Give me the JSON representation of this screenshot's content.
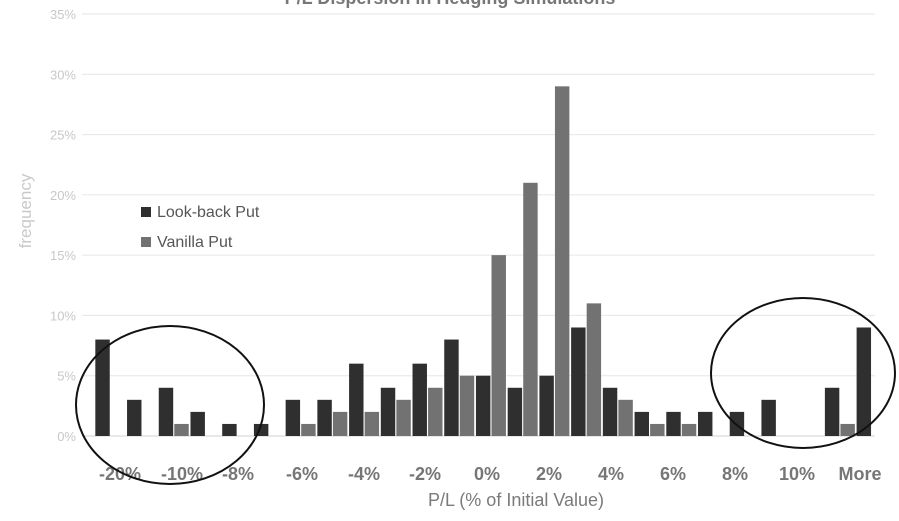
{
  "chart_data": {
    "type": "bar",
    "title": "P/L Dispersion in Hedging Simulations",
    "xlabel": "P/L (% of Initial Value)",
    "ylabel": "frequency",
    "ylim": [
      0,
      35
    ],
    "y_ticks": [
      "0%",
      "5%",
      "10%",
      "15%",
      "20%",
      "25%",
      "30%",
      "35%"
    ],
    "grid": true,
    "legend_position": "left",
    "x_tick_labels": [
      "-20%",
      "-10%",
      "-8%",
      "-6%",
      "-4%",
      "-2%",
      "0%",
      "2%",
      "4%",
      "6%",
      "8%",
      "10%",
      "More"
    ],
    "series": [
      {
        "name": "Look-back Put",
        "color": "#2f2f2f",
        "values": [
          8,
          3,
          4,
          2,
          1,
          1,
          3,
          3,
          6,
          4,
          6,
          8,
          5,
          4,
          5,
          9,
          4,
          2,
          2,
          2,
          2,
          3,
          0,
          4,
          9
        ]
      },
      {
        "name": "Vanilla Put",
        "color": "#727272",
        "values": [
          0,
          0,
          1,
          0,
          0,
          0,
          1,
          2,
          2,
          3,
          4,
          5,
          15,
          21,
          29,
          11,
          3,
          1,
          1,
          0,
          0,
          0,
          0,
          1,
          0
        ]
      }
    ],
    "annotations": [
      "circle around left tail",
      "circle around right tail"
    ]
  }
}
